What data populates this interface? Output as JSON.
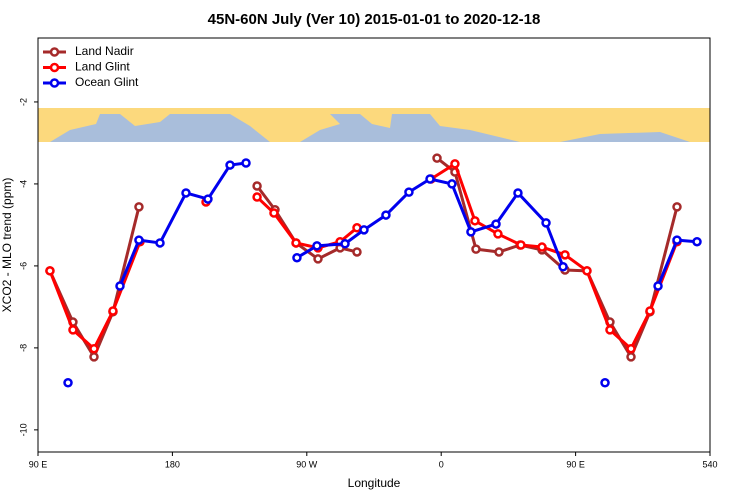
{
  "chart_data": {
    "type": "line",
    "title": "45N-60N July (Ver 10)   2015-01-01 to 2020-12-18",
    "x_label": "Longitude",
    "y_label": "XCO2 - MLO trend (ppm)",
    "xlim": [
      90,
      540
    ],
    "ylim": [
      -10.54,
      -0.44
    ],
    "xticks": [
      {
        "value": 90,
        "label": "90 E"
      },
      180,
      {
        "value": 270,
        "label": "90 W"
      },
      {
        "value": 360,
        "label": "0"
      },
      {
        "value": 450,
        "label": "90 E"
      },
      540
    ],
    "yticks": [
      -2,
      -4,
      -6,
      -8,
      -10
    ],
    "legend": "top-left",
    "series": [
      {
        "name": "Land Nadir",
        "color": "#a52a2a",
        "x": [
          98.0,
          113.4,
          127.5,
          140.2,
          157.6,
          null,
          236.7,
          248.7,
          262.8,
          277.5,
          292.3,
          303.6,
          null,
          357.2,
          369.2,
          383.3,
          398.7,
          412.8,
          427.5,
          442.9,
          457.6,
          473.0,
          487.1,
          499.8,
          517.9
        ],
        "values": [
          -6.12,
          -7.37,
          -8.22,
          -7.12,
          -4.56,
          null,
          -4.05,
          -4.63,
          -5.44,
          -5.83,
          -5.56,
          -5.66,
          null,
          -3.37,
          -3.71,
          -5.59,
          -5.66,
          -5.49,
          -5.61,
          -6.1,
          -6.12,
          -7.37,
          -8.22,
          -7.12,
          -4.56
        ]
      },
      {
        "name": "Land Glint",
        "color": "#ff0000",
        "x": [
          98.0,
          113.4,
          127.5,
          140.2,
          158.3,
          null,
          202.5,
          null,
          236.7,
          248.0,
          262.8,
          277.5,
          292.3,
          303.6,
          null,
          353.2,
          369.2,
          382.6,
          398.0,
          413.4,
          427.5,
          442.9,
          457.6,
          473.0,
          487.1,
          499.8,
          517.9
        ],
        "values": [
          -6.12,
          -7.56,
          -8.02,
          -7.1,
          -5.41,
          null,
          -4.44,
          null,
          -4.32,
          -4.71,
          -5.44,
          -5.56,
          -5.41,
          -5.07,
          null,
          -3.88,
          -3.51,
          -4.9,
          -5.22,
          -5.49,
          -5.54,
          -5.73,
          -6.12,
          -7.56,
          -8.02,
          -7.1,
          -5.41
        ]
      },
      {
        "name": "Ocean Glint",
        "color": "#0000ee",
        "x": [
          110.1,
          null,
          144.9,
          157.6,
          171.7,
          189.1,
          203.8,
          218.6,
          229.3,
          null,
          263.4,
          276.8,
          295.6,
          308.3,
          323.0,
          338.4,
          352.5,
          367.2,
          379.9,
          396.7,
          411.4,
          430.2,
          441.6,
          null,
          469.7,
          null,
          505.2,
          517.9,
          531.3
        ],
        "values": [
          -8.85,
          null,
          -6.49,
          -5.37,
          -5.44,
          -4.22,
          -4.37,
          -3.54,
          -3.49,
          null,
          -5.8,
          -5.51,
          -5.46,
          -5.12,
          -4.76,
          -4.2,
          -3.88,
          -4.0,
          -5.17,
          -4.98,
          -4.22,
          -4.95,
          -6.02,
          null,
          -8.85,
          null,
          -6.49,
          -5.37,
          -5.41
        ]
      }
    ]
  }
}
